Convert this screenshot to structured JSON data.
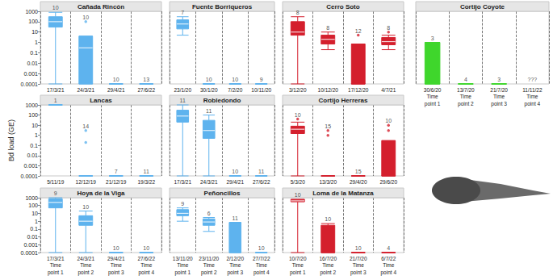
{
  "chart_data": [
    {
      "type": "boxplot",
      "title": "Cañada Rincón",
      "categories": [
        "17/3/21",
        "24/3/21",
        "29/4/21",
        "27/6/22"
      ],
      "boxes": [
        [
          0.0001,
          30,
          100,
          300,
          800
        ],
        [
          0.0001,
          0.0001,
          0.3,
          4,
          4
        ],
        [
          0.0001,
          0.0001,
          0.0001,
          0.0001,
          0.0001
        ],
        [
          0.0001,
          0.0001,
          0.0001,
          0.0001,
          0.0001
        ]
      ],
      "outliers": [
        [],
        [
          100
        ],
        [],
        []
      ],
      "n": [
        10,
        10,
        10,
        13
      ],
      "color": "#5eb3ee",
      "log": "y",
      "ylim": [
        0.0001,
        1000
      ],
      "yticks": [
        0.0001,
        0.001,
        0.01,
        0.1,
        1,
        10,
        100,
        1000
      ],
      "grid": false
    },
    {
      "type": "boxplot",
      "title": "Fuente Borriqueros",
      "categories": [
        "23/1/20",
        "30/1/20",
        "7/2/20",
        "10/11/20"
      ],
      "boxes": [
        [
          5,
          20,
          60,
          150,
          300
        ],
        [
          0.0001,
          0.0001,
          0.0001,
          0.0001,
          0.0001
        ],
        [
          0.0001,
          0.0001,
          0.0001,
          0.0001,
          0.0001
        ],
        [
          0.0001,
          0.0001,
          0.0001,
          0.0001,
          0.0001
        ]
      ],
      "outliers": [
        [],
        [],
        [],
        []
      ],
      "n": [
        7,
        10,
        10,
        9
      ],
      "color": "#5eb3ee",
      "log": "y",
      "ylim": [
        0.0001,
        1000
      ],
      "yticks": [
        0.0001,
        0.001,
        0.01,
        0.1,
        1,
        10,
        100,
        1000
      ],
      "grid": false,
      "tick_labels": "x"
    },
    {
      "type": "boxplot",
      "title": "Cerro Soto",
      "categories": [
        "3/12/20",
        "10/12/20",
        "17/12/20",
        "4/7/21"
      ],
      "boxes": [
        [
          0.0001,
          5,
          10,
          100,
          300
        ],
        [
          0.2,
          0.7,
          2,
          5,
          10
        ],
        [
          0.0001,
          0.0001,
          0.0001,
          0.7,
          0.7
        ],
        [
          0.2,
          0.6,
          1.2,
          3,
          5
        ]
      ],
      "outliers": [
        [],
        [],
        [
          5
        ],
        [
          10
        ]
      ],
      "n": [
        8,
        8,
        12,
        8
      ],
      "color": "#d41f2d",
      "log": "y",
      "ylim": [
        0.0001,
        1000
      ],
      "yticks": [
        0.0001,
        0.001,
        0.01,
        0.1,
        1,
        10,
        100,
        1000
      ],
      "grid": false,
      "tick_labels": "x"
    },
    {
      "type": "boxplot",
      "title": "Cortijo Coyote",
      "categories": [
        "30/6/20\nTime\npoint 1",
        "13/7/20\nTime\npoint 2",
        "21/7/20\nTime\npoint 3",
        "11/11/22\nTime\npoint 4"
      ],
      "boxes": [
        [
          0.0001,
          0.0001,
          0.0001,
          1,
          1
        ],
        [
          0.0001,
          0.0001,
          0.0001,
          0.0001,
          0.0001
        ],
        [
          0.0001,
          0.0001,
          0.0001,
          0.0001,
          0.0001
        ],
        null
      ],
      "outliers": [
        [],
        [],
        [],
        []
      ],
      "n": [
        3,
        4,
        3,
        "???"
      ],
      "color": "#3fd62c",
      "log": "y",
      "ylim": [
        0.0001,
        1000
      ],
      "yticks": [
        0.0001,
        0.001,
        0.01,
        0.1,
        1,
        10,
        100,
        1000
      ],
      "grid": false,
      "tick_labels": "x"
    },
    {
      "type": "boxplot",
      "title": "Lancas",
      "ylabel": "Bd load (GE)",
      "categories": [
        "5/11/19",
        "12/12/19",
        "21/12/19",
        "19/3/22"
      ],
      "boxes": [
        [
          1000,
          1000,
          1000,
          1000,
          1000
        ],
        [
          0.0001,
          0.0001,
          0.0001,
          0.0001,
          0.0001
        ],
        [
          0.0001,
          0.0001,
          0.0001,
          0.0001,
          0.0001
        ],
        [
          0.0001,
          0.0001,
          0.0001,
          0.0001,
          0.0001
        ]
      ],
      "outliers": [
        [],
        [
          3,
          0.2
        ],
        [],
        []
      ],
      "n": [
        1,
        14,
        7,
        11
      ],
      "color": "#5eb3ee",
      "log": "y",
      "ylim": [
        0.0001,
        1000
      ],
      "yticks": [
        0.0001,
        0.001,
        0.01,
        0.1,
        1,
        10,
        100,
        1000
      ],
      "grid": false
    },
    {
      "type": "boxplot",
      "title": "Robledondo",
      "categories": [
        "17/3/21",
        "24/3/21",
        "29/4/21",
        "27/6/22"
      ],
      "boxes": [
        [
          0.0001,
          20,
          80,
          300,
          1000
        ],
        [
          0.0001,
          0.5,
          3,
          30,
          100
        ],
        [
          0.0001,
          0.0001,
          0.0001,
          0.0001,
          0.0001
        ],
        [
          0.0001,
          0.0001,
          0.0001,
          0.0001,
          0.0001
        ]
      ],
      "outliers": [
        [],
        [],
        [],
        []
      ],
      "n": [
        11,
        11,
        10,
        11
      ],
      "color": "#5eb3ee",
      "log": "y",
      "ylim": [
        0.0001,
        1000
      ],
      "yticks": [
        0.0001,
        0.001,
        0.01,
        0.1,
        1,
        10,
        100,
        1000
      ],
      "grid": false,
      "tick_labels": "x"
    },
    {
      "type": "boxplot",
      "title": "Cortijo Herreras",
      "categories": [
        "5/3/20",
        "13/3/20",
        "29/4/20",
        "29/6/20"
      ],
      "boxes": [
        [
          0.0001,
          1.5,
          4,
          8,
          20
        ],
        [
          0.0001,
          0.0001,
          0.0001,
          0.0001,
          0.0001
        ],
        [
          0.0001,
          0.0001,
          0.0001,
          0.0001,
          0.0001
        ],
        [
          0.0001,
          0.0001,
          0.0001,
          0.3,
          0.3
        ]
      ],
      "outliers": [
        [
          40
        ],
        [
          3,
          1
        ],
        [],
        [
          3,
          10
        ]
      ],
      "n": [
        10,
        15,
        15,
        10
      ],
      "color": "#d41f2d",
      "log": "y",
      "ylim": [
        0.0001,
        1000
      ],
      "yticks": [
        0.0001,
        0.001,
        0.01,
        0.1,
        1,
        10,
        100,
        1000
      ],
      "grid": false,
      "tick_labels": "x"
    },
    {
      "type": "boxplot",
      "title": "Hoya de la Viga",
      "categories": [
        "17/3/21\nTime\npoint 1",
        "24/3/21\nTime\npoint 2",
        "29/4/21\nTime\npoint 3",
        "27/6/22\nTime\npoint 4"
      ],
      "boxes": [
        [
          0.0001,
          50,
          250,
          700,
          1000
        ],
        [
          0.0001,
          0.3,
          1,
          5,
          20
        ],
        [
          0.0001,
          0.0001,
          0.0001,
          0.0001,
          0.0001
        ],
        [
          0.0001,
          0.0001,
          0.0001,
          0.0001,
          0.0001
        ]
      ],
      "outliers": [
        [],
        [],
        [],
        []
      ],
      "n": [
        9,
        10,
        10,
        10
      ],
      "color": "#5eb3ee",
      "log": "y",
      "ylim": [
        0.0001,
        1000
      ],
      "yticks": [
        0.0001,
        0.001,
        0.01,
        0.1,
        1,
        10,
        100,
        1000
      ],
      "grid": false
    },
    {
      "type": "boxplot",
      "title": "Peñoncillos",
      "categories": [
        "13/11/20\nTime\npoint 1",
        "23/11/20\nTime\npoint 2",
        "2/12/20\nTime\npoint 3",
        "27/7/22\nTime\npoint 4"
      ],
      "boxes": [
        [
          1,
          5,
          10,
          30,
          50
        ],
        [
          0.05,
          0.3,
          0.8,
          2,
          3
        ],
        [
          0.0001,
          0.0001,
          0.0001,
          0.7,
          0.7
        ],
        [
          0.0001,
          0.0001,
          0.0001,
          0.0001,
          0.0001
        ]
      ],
      "outliers": [
        [],
        [],
        [],
        []
      ],
      "n": [
        9,
        6,
        11,
        10
      ],
      "color": "#5eb3ee",
      "log": "y",
      "ylim": [
        0.0001,
        1000
      ],
      "yticks": [
        0.0001,
        0.001,
        0.01,
        0.1,
        1,
        10,
        100,
        1000
      ],
      "grid": false,
      "tick_labels": "x"
    },
    {
      "type": "boxplot",
      "title": "Loma de la Matanza",
      "categories": [
        "10/7/20\nTime\npoint 1",
        "16/7/20\nTime\npoint 2",
        "21/7/20\nTime\npoint 3",
        "6/7/22\nTime\npoint 4"
      ],
      "boxes": [
        [
          0.0001,
          300,
          400,
          600,
          600
        ],
        [
          0.0001,
          0.0001,
          0.0001,
          0.3,
          0.5
        ],
        [
          0.0001,
          0.0001,
          0.0001,
          0.0001,
          0.0001
        ],
        [
          0.0001,
          0.0001,
          0.0001,
          0.0001,
          0.0001
        ]
      ],
      "outliers": [
        [],
        [],
        [],
        []
      ],
      "n": [
        10,
        10,
        10,
        4
      ],
      "color": "#d41f2d",
      "log": "y",
      "ylim": [
        0.0001,
        1000
      ],
      "yticks": [
        0.0001,
        0.001,
        0.01,
        0.1,
        1,
        10,
        100,
        1000
      ],
      "grid": false,
      "tick_labels": "x"
    }
  ]
}
